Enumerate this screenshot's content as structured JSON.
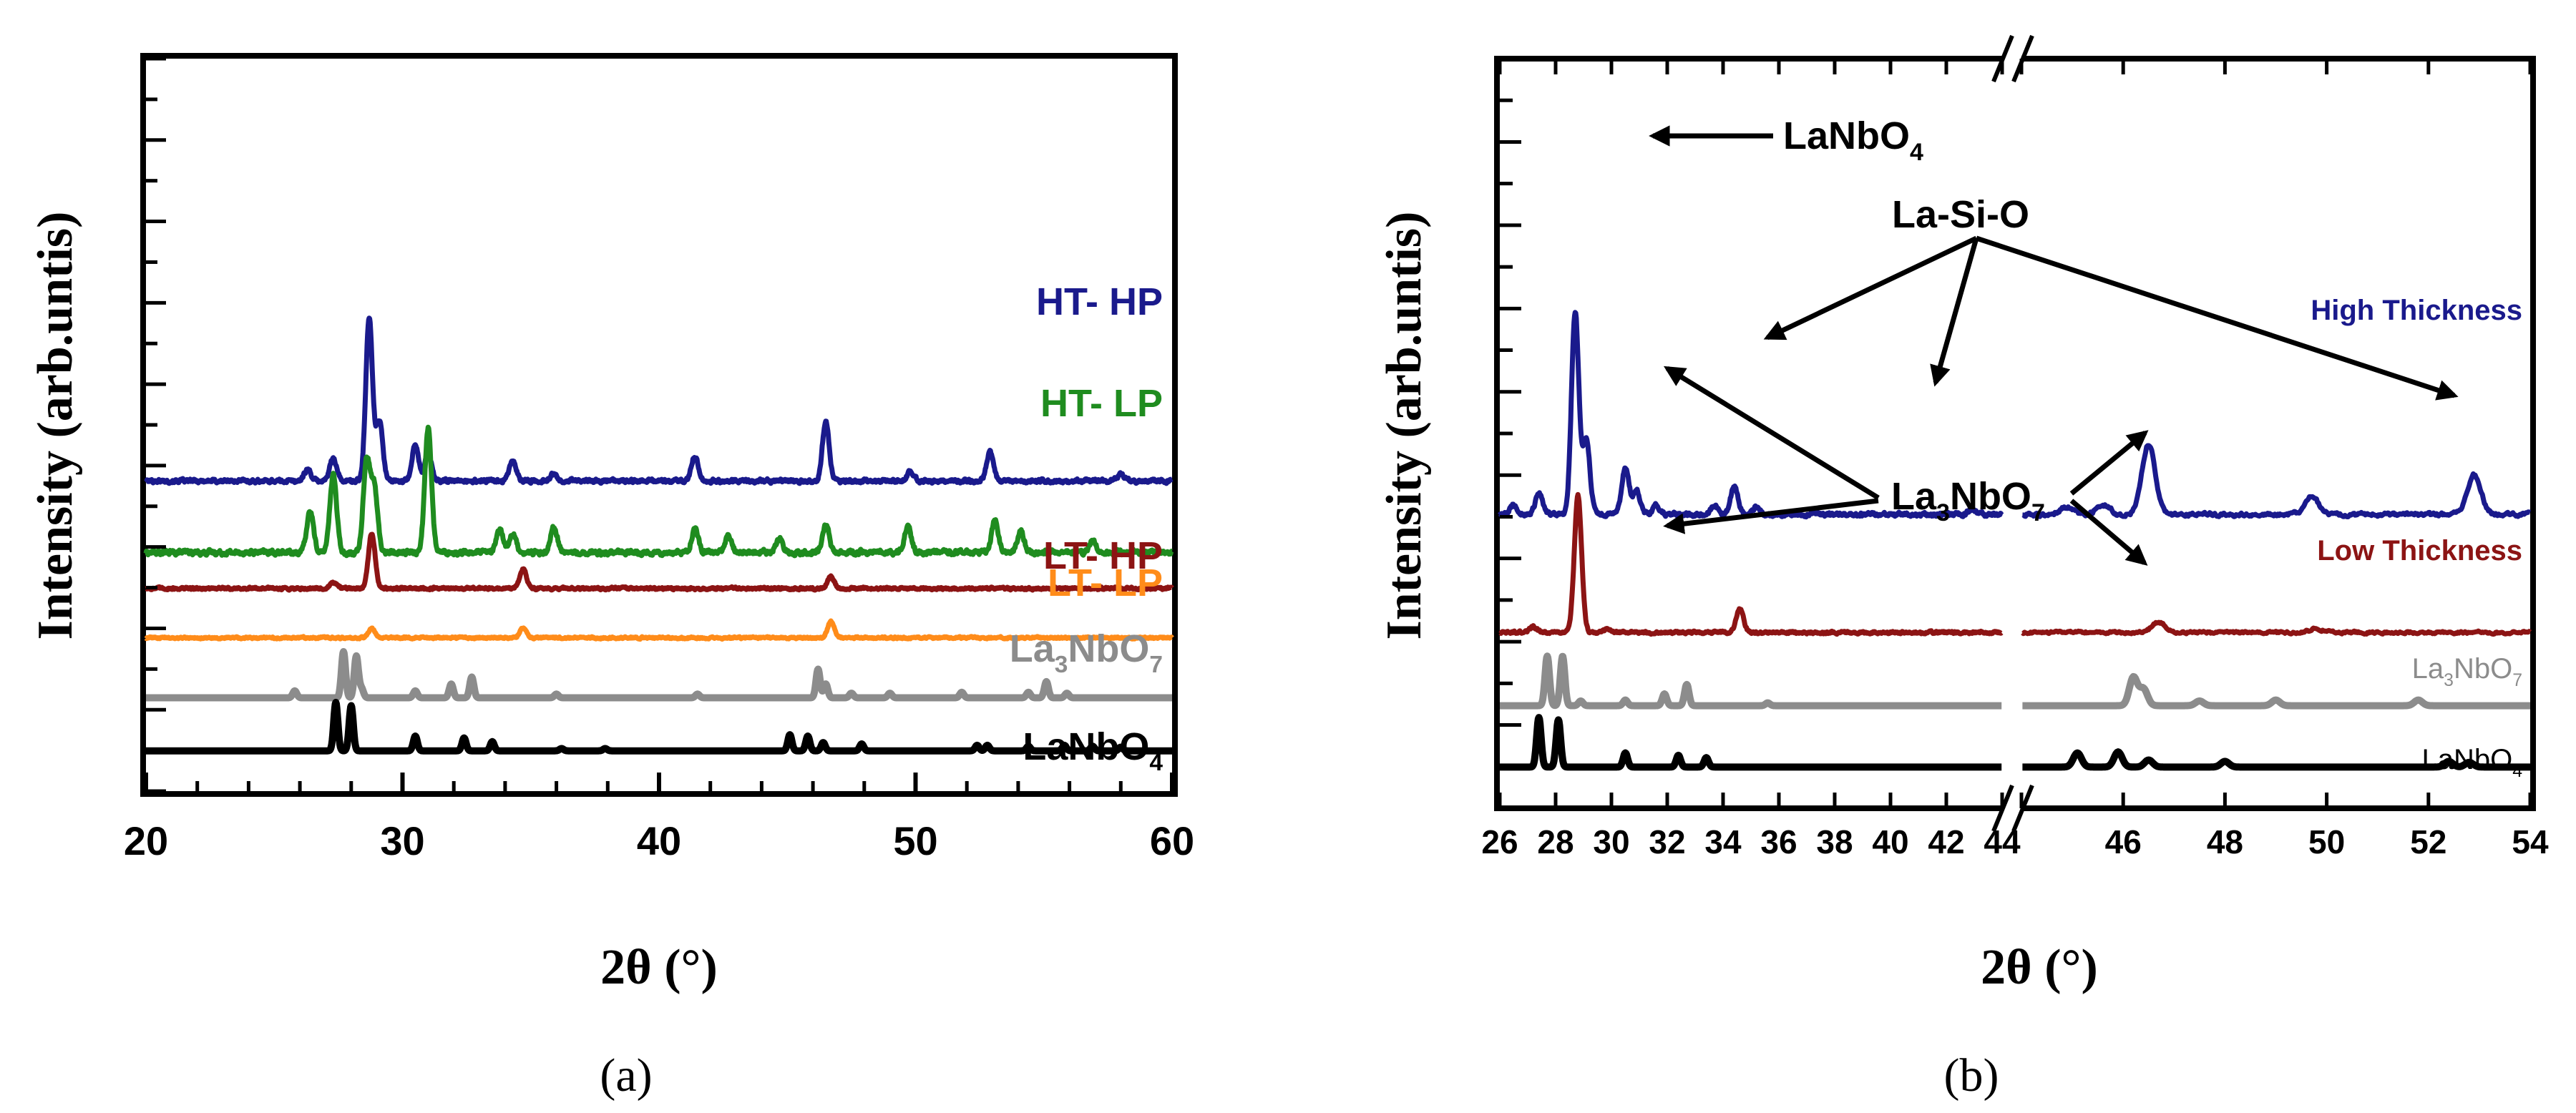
{
  "chart_data": [
    {
      "id": "a",
      "type": "line",
      "panel_label": "(a)",
      "xlabel": "2θ (°)",
      "ylabel": "Intensity (arb.untis)",
      "xlim": [
        20,
        60
      ],
      "xticks": [
        20,
        30,
        40,
        50,
        60
      ],
      "tick_labels": [
        "20",
        "30",
        "40",
        "50",
        "60"
      ],
      "ylim": [
        0,
        10
      ],
      "series": [
        {
          "name": "HT- HP",
          "label_sub": "",
          "label_tail": "",
          "color": "#1a1a8c",
          "baseline": 5.85,
          "noise": 0.07,
          "style": "line",
          "peaks": [
            [
              26.3,
              0.25
            ],
            [
              27.3,
              0.5
            ],
            [
              28.7,
              3.55
            ],
            [
              29.1,
              1.3
            ],
            [
              30.5,
              0.8
            ],
            [
              31.0,
              0.6
            ],
            [
              34.3,
              0.45
            ],
            [
              35.9,
              0.15
            ],
            [
              41.4,
              0.55
            ],
            [
              46.5,
              1.3
            ],
            [
              49.8,
              0.2
            ],
            [
              52.9,
              0.65
            ],
            [
              58.0,
              0.15
            ]
          ]
        },
        {
          "name": "HT- LP",
          "label_sub": "",
          "label_tail": "",
          "color": "#1f8c1f",
          "baseline": 4.3,
          "noise": 0.09,
          "style": "line",
          "peaks": [
            [
              26.4,
              0.9
            ],
            [
              27.3,
              1.7
            ],
            [
              28.6,
              2.0
            ],
            [
              28.9,
              1.4
            ],
            [
              31.0,
              2.7
            ],
            [
              33.8,
              0.5
            ],
            [
              34.3,
              0.4
            ],
            [
              35.9,
              0.55
            ],
            [
              41.4,
              0.5
            ],
            [
              42.7,
              0.35
            ],
            [
              44.7,
              0.3
            ],
            [
              46.5,
              0.6
            ],
            [
              49.7,
              0.55
            ],
            [
              53.1,
              0.7
            ],
            [
              54.1,
              0.45
            ],
            [
              56.9,
              0.25
            ]
          ]
        },
        {
          "name": "LT- HP",
          "label_sub": "",
          "label_tail": "",
          "color": "#8c1414",
          "baseline": 3.52,
          "noise": 0.045,
          "style": "line",
          "peaks": [
            [
              27.3,
              0.12
            ],
            [
              28.8,
              1.2
            ],
            [
              34.7,
              0.42
            ],
            [
              46.7,
              0.25
            ]
          ]
        },
        {
          "name": "LT- LP",
          "label_sub": "",
          "label_tail": "",
          "color": "#ff8c1a",
          "baseline": 2.45,
          "noise": 0.035,
          "style": "line",
          "peaks": [
            [
              28.8,
              0.2
            ],
            [
              34.7,
              0.22
            ],
            [
              46.7,
              0.35
            ]
          ]
        },
        {
          "name": "La",
          "label_sub": "3",
          "label_tail": "NbO",
          "label_sub2": "7",
          "color": "#8c8c8c",
          "baseline": 1.15,
          "noise": 0.0,
          "style": "stick",
          "peaks": [
            [
              25.8,
              0.15
            ],
            [
              27.7,
              1.0
            ],
            [
              28.2,
              0.9
            ],
            [
              28.4,
              0.2
            ],
            [
              30.5,
              0.15
            ],
            [
              31.9,
              0.3
            ],
            [
              32.7,
              0.45
            ],
            [
              36.0,
              0.08
            ],
            [
              41.5,
              0.08
            ],
            [
              46.2,
              0.62
            ],
            [
              46.5,
              0.3
            ],
            [
              47.5,
              0.1
            ],
            [
              49.0,
              0.1
            ],
            [
              51.8,
              0.12
            ],
            [
              54.4,
              0.12
            ],
            [
              55.1,
              0.35
            ],
            [
              55.9,
              0.1
            ]
          ]
        },
        {
          "name": "LaNbO",
          "label_sub": "",
          "label_tail": "",
          "label_sub2": "4",
          "color": "#000000",
          "baseline": 0.0,
          "noise": 0.0,
          "style": "stick",
          "peaks": [
            [
              27.4,
              1.05
            ],
            [
              28.0,
              0.98
            ],
            [
              30.5,
              0.32
            ],
            [
              32.4,
              0.28
            ],
            [
              33.5,
              0.2
            ],
            [
              36.2,
              0.05
            ],
            [
              37.9,
              0.05
            ],
            [
              45.1,
              0.35
            ],
            [
              45.8,
              0.32
            ],
            [
              46.4,
              0.18
            ],
            [
              47.9,
              0.15
            ],
            [
              52.4,
              0.12
            ],
            [
              52.8,
              0.12
            ],
            [
              54.4,
              0.1
            ],
            [
              55.8,
              0.12
            ],
            [
              56.9,
              0.1
            ],
            [
              58.0,
              0.08
            ]
          ]
        }
      ]
    },
    {
      "id": "b",
      "type": "line",
      "panel_label": "(b)",
      "xlabel": "2θ (°)",
      "ylabel": "Intensity (arb.untis)",
      "broken_axis": true,
      "segments": [
        {
          "xlim": [
            26,
            44
          ]
        },
        {
          "xlim": [
            44,
            54
          ]
        }
      ],
      "xticks_left": [
        26,
        28,
        30,
        32,
        34,
        36,
        38,
        40,
        42,
        44
      ],
      "xticks_right": [
        44,
        46,
        48,
        50,
        52,
        54
      ],
      "ylim": [
        0,
        10
      ],
      "series": [
        {
          "name": "High Thickness",
          "color": "#1a1a8c",
          "baseline": 5.35,
          "noise": 0.07,
          "style": "line",
          "peaks": [
            [
              26.5,
              0.2
            ],
            [
              27.4,
              0.45
            ],
            [
              28.7,
              4.3
            ],
            [
              29.1,
              1.6
            ],
            [
              30.5,
              1.0
            ],
            [
              30.9,
              0.5
            ],
            [
              31.6,
              0.2
            ],
            [
              33.7,
              0.2
            ],
            [
              34.4,
              0.6
            ],
            [
              35.2,
              0.15
            ],
            [
              42.9,
              0.12
            ],
            [
              44.9,
              0.15
            ],
            [
              45.6,
              0.2
            ],
            [
              46.5,
              1.5
            ],
            [
              49.7,
              0.4
            ],
            [
              52.9,
              0.85
            ]
          ]
        },
        {
          "name": "Low Thickness",
          "color": "#8c1414",
          "baseline": 2.85,
          "noise": 0.045,
          "style": "line",
          "peaks": [
            [
              27.2,
              0.12
            ],
            [
              28.8,
              2.9
            ],
            [
              29.9,
              0.08
            ],
            [
              34.6,
              0.5
            ],
            [
              46.7,
              0.22
            ],
            [
              49.8,
              0.08
            ]
          ]
        },
        {
          "name": "La",
          "label_sub": "3",
          "label_tail": "NbO",
          "label_sub2": "7",
          "color": "#8c8c8c",
          "baseline": 1.3,
          "noise": 0.0,
          "style": "stick",
          "peaks": [
            [
              27.7,
              1.05
            ],
            [
              28.25,
              1.05
            ],
            [
              28.9,
              0.1
            ],
            [
              30.5,
              0.12
            ],
            [
              31.9,
              0.25
            ],
            [
              32.7,
              0.45
            ],
            [
              35.6,
              0.06
            ],
            [
              46.2,
              0.6
            ],
            [
              46.4,
              0.35
            ],
            [
              47.5,
              0.1
            ],
            [
              49.0,
              0.12
            ],
            [
              51.8,
              0.12
            ]
          ]
        },
        {
          "name": "LaNbO",
          "label_sub": "",
          "label_tail": "",
          "label_sub2": "4",
          "color": "#000000",
          "baseline": 0.0,
          "noise": 0.0,
          "style": "stick",
          "peaks": [
            [
              27.4,
              1.05
            ],
            [
              28.1,
              1.0
            ],
            [
              30.5,
              0.3
            ],
            [
              32.4,
              0.25
            ],
            [
              33.4,
              0.2
            ],
            [
              45.1,
              0.3
            ],
            [
              45.9,
              0.32
            ],
            [
              46.5,
              0.15
            ],
            [
              48.0,
              0.12
            ],
            [
              52.4,
              0.12
            ],
            [
              52.8,
              0.1
            ]
          ]
        }
      ],
      "annotations": [
        {
          "text": "LaNbO",
          "sub": "4"
        },
        {
          "text": "La-Si-O",
          "sub": ""
        },
        {
          "text": "La",
          "sub": "3",
          "tail": "NbO",
          "sub2": "7"
        }
      ]
    }
  ]
}
